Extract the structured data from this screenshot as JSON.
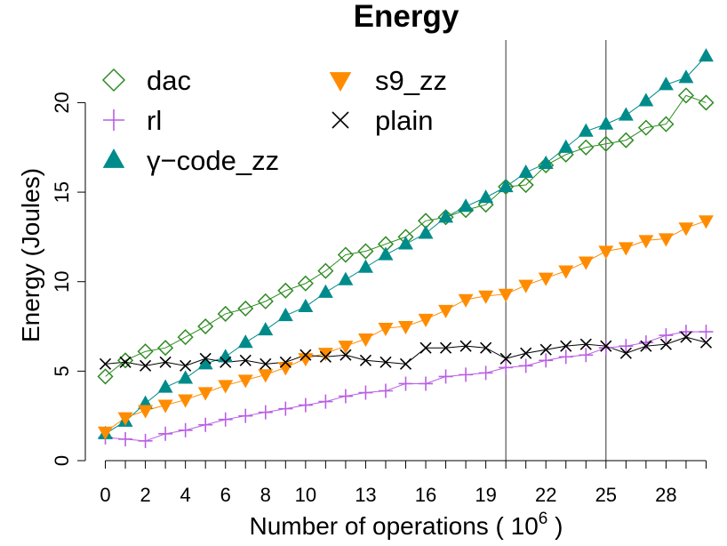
{
  "chart_data": {
    "type": "line",
    "title": "Energy",
    "xlabel": "Number of operations ( 10",
    "xlabel_sup": "6",
    "xlabel_tail": " )",
    "ylabel": "Energy (Joules)",
    "xlim": [
      -1,
      31
    ],
    "ylim": [
      0,
      23.5
    ],
    "xticks": [
      0,
      2,
      4,
      6,
      8,
      10,
      13,
      16,
      19,
      22,
      25,
      28
    ],
    "yticks": [
      0,
      5,
      10,
      15,
      20
    ],
    "vlines": [
      20,
      25
    ],
    "grid": false,
    "legend_position": "top-left",
    "x": [
      0,
      1,
      2,
      3,
      4,
      5,
      6,
      7,
      8,
      9,
      10,
      11,
      12,
      13,
      14,
      15,
      16,
      17,
      18,
      19,
      20,
      21,
      22,
      23,
      24,
      25,
      26,
      27,
      28,
      29,
      30
    ],
    "series": [
      {
        "name": "dac",
        "color": "#2e8b22",
        "marker": "diamond-open",
        "values": [
          4.7,
          5.6,
          6.1,
          6.3,
          6.9,
          7.5,
          8.2,
          8.5,
          8.9,
          9.5,
          9.9,
          10.6,
          11.5,
          11.7,
          12.1,
          12.5,
          13.4,
          13.6,
          14.0,
          14.3,
          15.3,
          15.4,
          16.5,
          17.1,
          17.5,
          17.7,
          17.9,
          18.6,
          18.8,
          20.4,
          20.0
        ]
      },
      {
        "name": "rl",
        "color": "#b95ee3",
        "marker": "plus",
        "values": [
          1.3,
          1.2,
          1.1,
          1.5,
          1.7,
          2.0,
          2.3,
          2.5,
          2.7,
          2.9,
          3.1,
          3.3,
          3.6,
          3.8,
          3.9,
          4.3,
          4.3,
          4.7,
          4.8,
          4.9,
          5.2,
          5.3,
          5.6,
          5.8,
          5.9,
          6.3,
          6.4,
          6.6,
          7.0,
          7.2,
          7.2
        ]
      },
      {
        "name": "γ−code_zz",
        "color": "#008b8b",
        "marker": "triangle-up",
        "values": [
          1.5,
          2.2,
          3.2,
          4.1,
          4.6,
          5.4,
          5.8,
          6.6,
          7.3,
          8.1,
          8.6,
          9.4,
          10.1,
          10.8,
          11.5,
          12.1,
          12.7,
          13.6,
          14.2,
          14.7,
          15.3,
          16.1,
          16.6,
          17.5,
          18.4,
          18.8,
          19.3,
          20.1,
          21.0,
          21.4,
          22.6
        ]
      },
      {
        "name": "s9_zz",
        "color": "#ff8c00",
        "marker": "triangle-down",
        "values": [
          1.6,
          2.4,
          2.8,
          3.1,
          3.4,
          3.8,
          4.2,
          4.5,
          4.8,
          5.2,
          5.7,
          6.0,
          6.4,
          6.8,
          7.4,
          7.5,
          7.9,
          8.4,
          9.0,
          9.2,
          9.3,
          9.8,
          10.2,
          10.6,
          11.1,
          11.7,
          11.9,
          12.3,
          12.4,
          13.0,
          13.4
        ]
      },
      {
        "name": "plain",
        "color": "#000000",
        "marker": "cross",
        "values": [
          5.4,
          5.5,
          5.3,
          5.5,
          5.3,
          5.7,
          5.5,
          5.6,
          5.4,
          5.5,
          5.9,
          5.8,
          5.9,
          5.6,
          5.5,
          5.4,
          6.3,
          6.3,
          6.4,
          6.3,
          5.7,
          6.0,
          6.2,
          6.4,
          6.5,
          6.4,
          6.0,
          6.4,
          6.5,
          6.9,
          6.6
        ]
      }
    ]
  }
}
